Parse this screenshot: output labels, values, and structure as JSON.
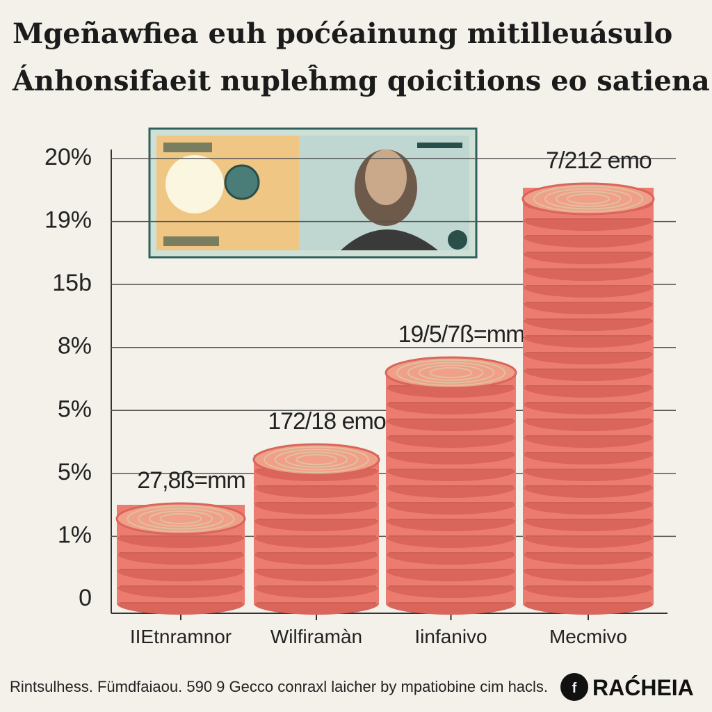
{
  "title": [
    "Mgeñawfiea euh poćéainung mitilleuásulo",
    "Ánhonsifaeit nupleĥmg qoicitions eo satiena"
  ],
  "y_axis_labels": [
    "20%",
    "19%",
    "15b",
    "8%",
    "5%",
    "5%",
    "1%",
    "0"
  ],
  "stacks": [
    {
      "category": "IIEtnramnor",
      "label": "27,8ß=mm"
    },
    {
      "category": "Wilfiramàn",
      "label": "172/18 emo"
    },
    {
      "category": "Iinfanivo",
      "label": "19/5/7ß=mm"
    },
    {
      "category": "Mecmivo",
      "label": "7/212 emo"
    }
  ],
  "footer": "Rintsulhess. Fümdfaiaou. 590 9 Gecco conraxl laicher by mpatiobine cim hacls.",
  "brand": "RAĆHEIA"
}
